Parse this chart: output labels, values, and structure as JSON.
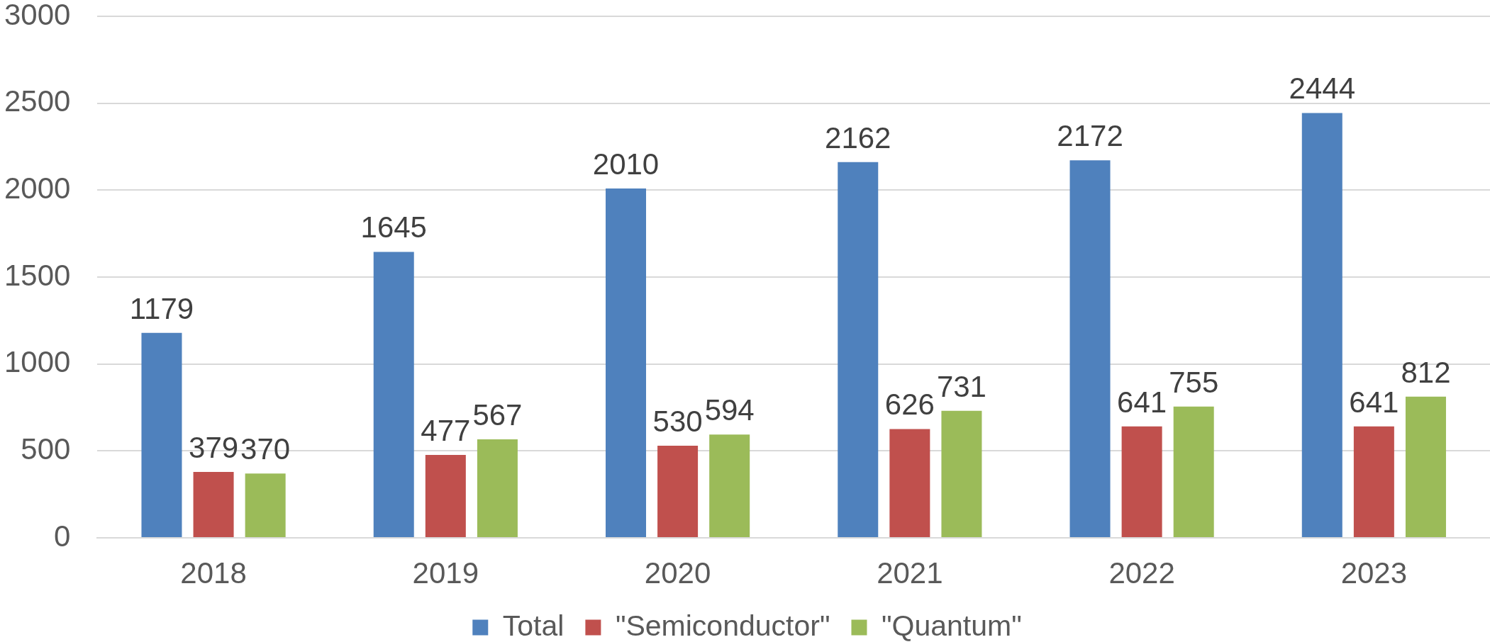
{
  "chart_data": {
    "type": "bar",
    "categories": [
      "2018",
      "2019",
      "2020",
      "2021",
      "2022",
      "2023"
    ],
    "series": [
      {
        "name": "Total",
        "color": "#4f81bd",
        "values": [
          1179,
          1645,
          2010,
          2162,
          2172,
          2444
        ]
      },
      {
        "name": "\"Semiconductor\"",
        "color": "#c0504d",
        "values": [
          379,
          477,
          530,
          626,
          641,
          641
        ]
      },
      {
        "name": "\"Quantum\"",
        "color": "#9bbb59",
        "values": [
          370,
          567,
          594,
          731,
          755,
          812
        ]
      }
    ],
    "ylim": [
      0,
      3000
    ],
    "yticks": [
      0,
      500,
      1000,
      1500,
      2000,
      2500,
      3000
    ],
    "grid": "y",
    "legend": "bottom",
    "data_labels": true
  }
}
